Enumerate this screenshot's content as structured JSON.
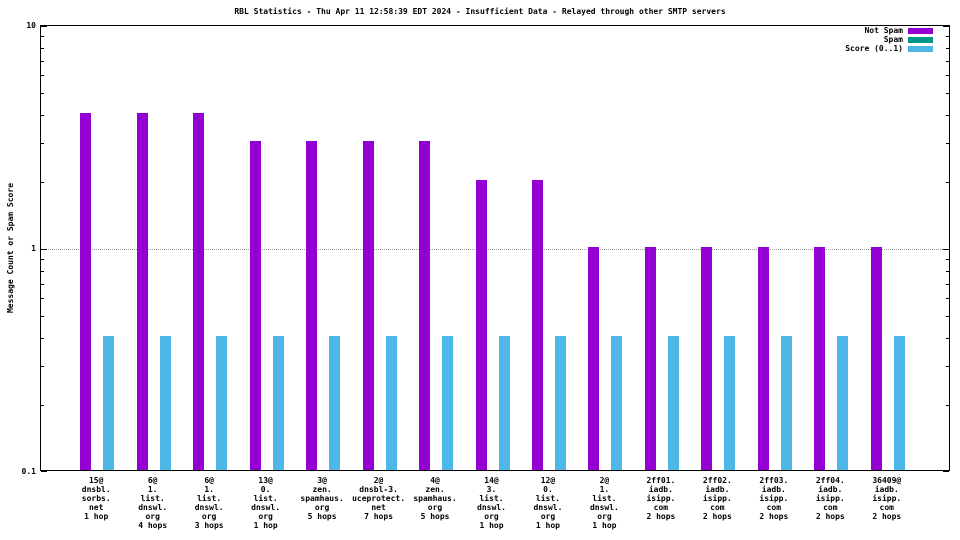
{
  "title": "RBL Statistics - Thu Apr 11 12:58:39 EDT 2024 - Insufficient Data - Relayed through other SMTP servers",
  "ylabel": "Message Count or Spam Score",
  "chart_data": {
    "type": "bar",
    "yscale": "log",
    "ylim": [
      0.1,
      10
    ],
    "ygrid": [
      1
    ],
    "grid": "horizontal-dotted-at-1",
    "legend_position": "top-right",
    "yticks": [
      {
        "label": "10",
        "value": 10
      },
      {
        "label": "1",
        "value": 1
      },
      {
        "label": "0.1",
        "value": 0.1
      }
    ],
    "categories": [
      [
        "15@",
        "dnsbl.",
        "sorbs.",
        "net",
        "1 hop"
      ],
      [
        "6@",
        "1.",
        "list.",
        "dnswl.",
        "org",
        "4 hops"
      ],
      [
        "6@",
        "1.",
        "list.",
        "dnswl.",
        "org",
        "3 hops"
      ],
      [
        "13@",
        "0.",
        "list.",
        "dnswl.",
        "org",
        "1 hop"
      ],
      [
        "3@",
        "zen.",
        "spamhaus.",
        "org",
        "5 hops"
      ],
      [
        "2@",
        "dnsbl-3.",
        "uceprotect.",
        "net",
        "7 hops"
      ],
      [
        "4@",
        "zen.",
        "spamhaus.",
        "org",
        "5 hops"
      ],
      [
        "14@",
        "3.",
        "list.",
        "dnswl.",
        "org",
        "1 hop"
      ],
      [
        "12@",
        "0.",
        "list.",
        "dnswl.",
        "org",
        "1 hop"
      ],
      [
        "2@",
        "1.",
        "list.",
        "dnswl.",
        "org",
        "1 hop"
      ],
      [
        "2ff01.",
        "iadb.",
        "isipp.",
        "com",
        "2 hops"
      ],
      [
        "2ff02.",
        "iadb.",
        "isipp.",
        "com",
        "2 hops"
      ],
      [
        "2ff03.",
        "iadb.",
        "isipp.",
        "com",
        "2 hops"
      ],
      [
        "2ff04.",
        "iadb.",
        "isipp.",
        "com",
        "2 hops"
      ],
      [
        "36409@",
        "iadb.",
        "isipp.",
        "com",
        "2 hops"
      ]
    ],
    "series": [
      {
        "name": "Not Spam",
        "color": "#9400d3",
        "values": [
          4,
          4,
          4,
          3,
          3,
          3,
          3,
          2,
          2,
          1,
          1,
          1,
          1,
          1,
          1
        ]
      },
      {
        "name": "Spam",
        "color": "#009688",
        "values": [
          0,
          0,
          0,
          0,
          0,
          0,
          0,
          0,
          0,
          0,
          0,
          0,
          0,
          0,
          0
        ]
      },
      {
        "name": "Score (0..1)",
        "color": "#4db8e8",
        "values": [
          0.4,
          0.4,
          0.4,
          0.4,
          0.4,
          0.4,
          0.4,
          0.4,
          0.4,
          0.4,
          0.4,
          0.4,
          0.4,
          0.4,
          0.4
        ]
      }
    ]
  }
}
